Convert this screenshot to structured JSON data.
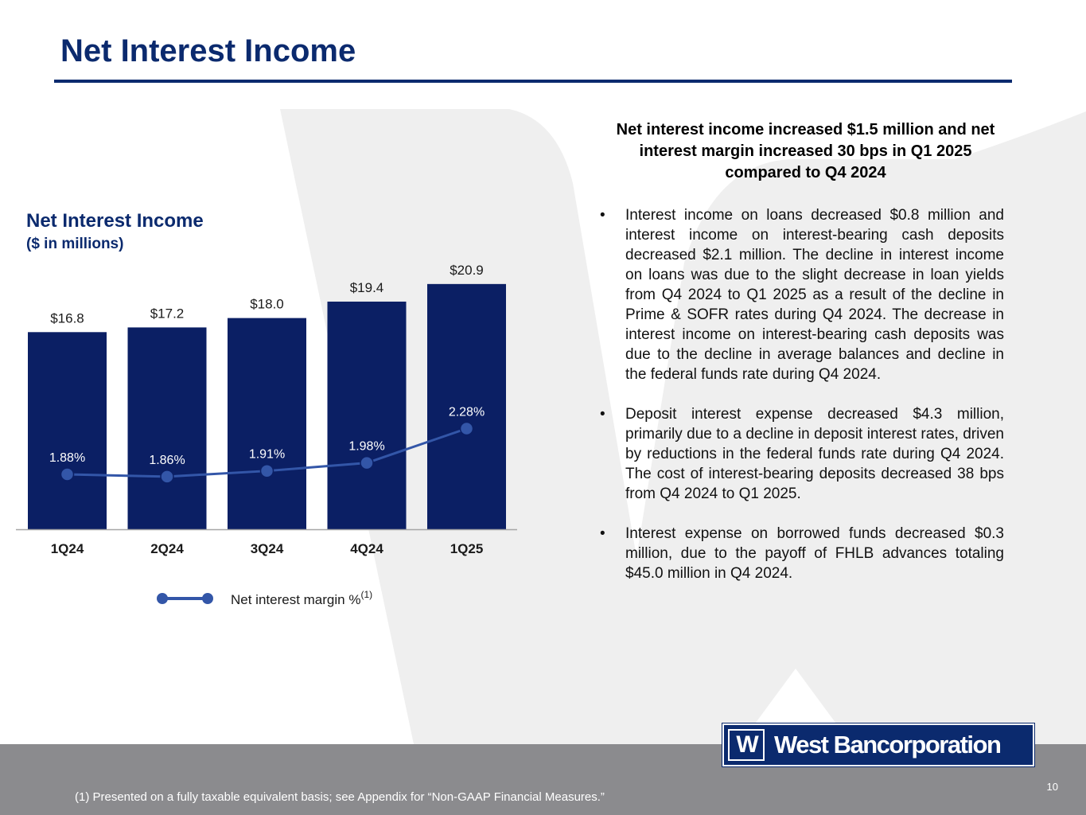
{
  "title": "Net Interest Income",
  "chart_heading": "Net Interest Income",
  "chart_subheading": "($ in millions)",
  "chart_data": {
    "type": "bar",
    "title": "Net Interest Income",
    "subtitle": "($ in millions)",
    "categories": [
      "1Q24",
      "2Q24",
      "3Q24",
      "4Q24",
      "1Q25"
    ],
    "series": [
      {
        "name": "Net Interest Income",
        "type": "bar",
        "values": [
          16.8,
          17.2,
          18.0,
          19.4,
          20.9
        ],
        "labels": [
          "$16.8",
          "$17.2",
          "$18.0",
          "$19.4",
          "$20.9"
        ]
      },
      {
        "name": "Net interest margin %",
        "type": "line",
        "values": [
          1.88,
          1.86,
          1.91,
          1.98,
          2.28
        ],
        "labels": [
          "1.88%",
          "1.86%",
          "1.91%",
          "1.98%",
          "2.28%"
        ]
      }
    ],
    "legend": {
      "label": "Net interest margin %",
      "superscript": "(1)",
      "position": "bottom"
    },
    "ylim": [
      0,
      21.5
    ],
    "margin_range": [
      1.4,
      3.0
    ],
    "colors": {
      "bar": "#0b1f64",
      "line": "#3356a8",
      "text": "#1a1a1a",
      "axis": "#a6a6a6"
    }
  },
  "summary": {
    "heading": "Net interest income increased $1.5 million and net interest margin increased 30 bps in Q1 2025 compared to Q4 2024",
    "bullets": [
      "Interest income on loans decreased $0.8 million and interest income on interest-bearing cash deposits decreased $2.1 million. The decline in interest income on loans was due to the slight decrease in loan yields from Q4 2024 to Q1 2025 as a result of the decline in Prime & SOFR rates during Q4 2024. The decrease in interest income on interest-bearing cash deposits was due to the decline in average balances and decline in the federal funds rate during Q4 2024.",
      "Deposit interest expense decreased $4.3 million, primarily due to a decline in deposit interest rates, driven by reductions in the federal funds rate during Q4 2024. The cost of interest-bearing deposits decreased 38 bps from Q4 2024 to Q1 2025.",
      "Interest expense on borrowed funds decreased $0.3 million, due to the payoff of FHLB advances totaling $45.0 million in Q4 2024."
    ],
    "bullet_symbol": "•"
  },
  "logo": {
    "mark": "W",
    "name": "West Bancorporation"
  },
  "footnote": "(1) Presented on a fully taxable equivalent basis; see Appendix for “Non-GAAP Financial Measures.”",
  "page_number": "10",
  "colors": {
    "brand_navy": "#0b2a6e",
    "footer_gray": "#8b8b8e",
    "watermark": "#efefef"
  }
}
